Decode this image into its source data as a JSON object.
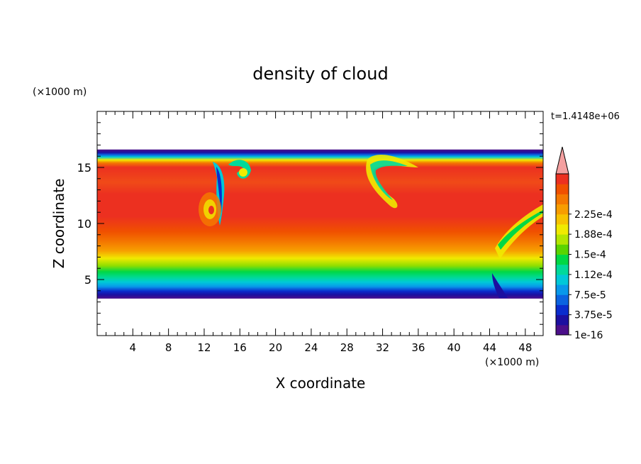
{
  "chart_data": {
    "type": "heatmap",
    "title": "density of cloud",
    "xlabel": "X coordinate",
    "ylabel": "Z coordinate",
    "x_unit": "(×1000 m)",
    "y_unit": "(×1000 m)",
    "time_label": "t=1.4148e+06",
    "xlim": [
      0,
      50
    ],
    "ylim": [
      0,
      20
    ],
    "x_ticks": [
      4,
      8,
      12,
      16,
      20,
      24,
      28,
      32,
      36,
      40,
      44,
      48
    ],
    "y_ticks": [
      5,
      10,
      15
    ],
    "cloud_base_z": 3.3,
    "cloud_top_z": 16.6,
    "colorbar": {
      "labels": [
        "1e-16",
        "3.75e-5",
        "7.5e-5",
        "1.12e-4",
        "1.5e-4",
        "1.88e-4",
        "2.25e-4"
      ],
      "colors": [
        "#4b0f8a",
        "#1c0fa0",
        "#0a2ccd",
        "#0b63e0",
        "#0898ea",
        "#00c8d8",
        "#00d99a",
        "#00d845",
        "#5ad400",
        "#b3e600",
        "#f0ea00",
        "#f7c300",
        "#f79d00",
        "#f47800",
        "#f05000",
        "#ec3020"
      ],
      "overflow_color": "#f4a0a0"
    }
  }
}
